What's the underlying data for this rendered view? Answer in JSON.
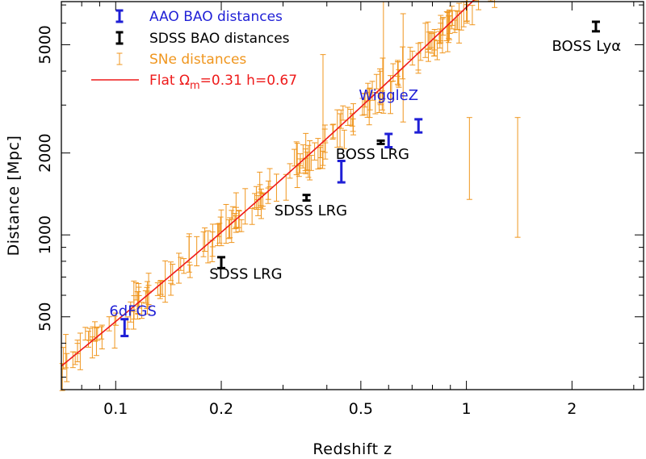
{
  "chart_data": {
    "type": "scatter",
    "title": "",
    "xlabel": "Redshift z",
    "ylabel": "Distance [Mpc]",
    "xscale": "log",
    "yscale": "log",
    "xlim": [
      0.07,
      3.2
    ],
    "ylim": [
      270,
      7200
    ],
    "x_ticks": [
      0.1,
      0.2,
      0.5,
      1,
      2
    ],
    "x_tick_labels": [
      "0.1",
      "0.2",
      "0.5",
      "1",
      "2"
    ],
    "y_ticks": [
      500,
      1000,
      2000,
      5000
    ],
    "y_tick_labels": [
      "500",
      "1000",
      "2000",
      "5000"
    ],
    "colors": {
      "aao": "#1f1fd6",
      "sdss": "#000000",
      "sne": "#f0961e",
      "model": "#ee1a1a"
    },
    "legend": {
      "placement": "top-left",
      "entries": [
        {
          "label": "AAO BAO distances",
          "series": "aao"
        },
        {
          "label": "SDSS BAO distances",
          "series": "sdss"
        },
        {
          "label": "SNe distances",
          "series": "sne"
        },
        {
          "label_prefix": "Flat ",
          "label_symbol": "Ω",
          "label_sub": "m",
          "label_suffix": "=0.31 h=0.67",
          "series": "model"
        }
      ]
    },
    "model_curve": {
      "name": "Flat Ωm=0.31 h=0.67",
      "omega_m": 0.31,
      "h": 0.67
    },
    "series": [
      {
        "name": "AAO BAO distances",
        "key": "aao",
        "points": [
          {
            "x": 0.106,
            "y": 456,
            "lo": 425,
            "hi": 490,
            "label": "6dFGS"
          },
          {
            "x": 0.44,
            "y": 1716,
            "lo": 1560,
            "hi": 1870,
            "label": ""
          },
          {
            "x": 0.6,
            "y": 2221,
            "lo": 2100,
            "hi": 2350,
            "label": ""
          },
          {
            "x": 0.73,
            "y": 2516,
            "lo": 2380,
            "hi": 2660,
            "label": "WiggleZ"
          }
        ]
      },
      {
        "name": "SDSS BAO distances",
        "key": "sdss",
        "points": [
          {
            "x": 0.2,
            "y": 790,
            "lo": 755,
            "hi": 828,
            "label": "SDSS LRG"
          },
          {
            "x": 0.35,
            "y": 1370,
            "lo": 1338,
            "hi": 1402,
            "label": "SDSS LRG"
          },
          {
            "x": 0.57,
            "y": 2190,
            "lo": 2160,
            "hi": 2220,
            "label": "BOSS LRG"
          },
          {
            "x": 2.34,
            "y": 5830,
            "lo": 5600,
            "hi": 6070,
            "label": "BOSS Lyα"
          }
        ]
      },
      {
        "name": "SNe distances",
        "key": "sne",
        "count": 220,
        "scatter_fraction": 0.06,
        "error_fraction_range": [
          0.05,
          0.2
        ],
        "x_range": [
          0.07,
          1.4
        ],
        "outliers": [
          {
            "x": 0.58,
            "y": 4300,
            "lo": 2800,
            "hi": 7200
          },
          {
            "x": 0.39,
            "y": 2900,
            "lo": 1800,
            "hi": 4600
          },
          {
            "x": 1.4,
            "y": 1500,
            "lo": 980,
            "hi": 2700
          },
          {
            "x": 1.02,
            "y": 1800,
            "lo": 1350,
            "hi": 2700
          },
          {
            "x": 0.66,
            "y": 3800,
            "lo": 2600,
            "hi": 6500
          }
        ]
      }
    ],
    "annotations": [
      {
        "text": "6dFGS",
        "series": "aao",
        "x": 0.112,
        "y": 505
      },
      {
        "text": "SDSS LRG",
        "series": "sdss",
        "x": 0.235,
        "y": 690
      },
      {
        "text": "SDSS LRG",
        "series": "sdss",
        "x": 0.36,
        "y": 1180
      },
      {
        "text": "BOSS LRG",
        "series": "sdss",
        "x": 0.54,
        "y": 1900
      },
      {
        "text": "WiggleZ",
        "series": "aao",
        "x": 0.6,
        "y": 3130
      },
      {
        "text": "BOSS Lyα",
        "series": "sdss",
        "x": 2.2,
        "y": 4750
      }
    ]
  }
}
